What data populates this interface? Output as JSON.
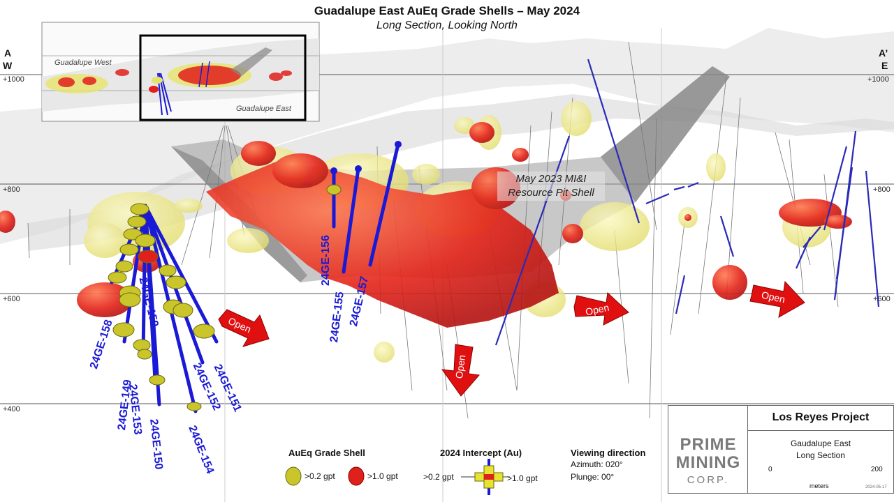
{
  "title": "Guadalupe East AuEq Grade Shells – May 2024",
  "subtitle": "Long Section, Looking North",
  "corners": {
    "left_top": "A",
    "left_bottom": "W",
    "right_top": "A’",
    "right_bottom": "E"
  },
  "elevations": [
    "+1000",
    "+800",
    "+600",
    "+400"
  ],
  "inset": {
    "west_label": "Guadalupe West",
    "east_label": "Guadalupe East"
  },
  "resource_label": [
    "May 2023 MI&I",
    "Resource Pit Shell"
  ],
  "open_label": "Open",
  "drillholes": [
    "24GE-158",
    "24GE-149",
    "24GE-153",
    "24GE-150",
    "24GE-159",
    "24GE-154",
    "24GE-152",
    "24GE-151",
    "24GE-156",
    "24GE-155",
    "24GE-157"
  ],
  "legend": {
    "shell_title": "AuEq Grade Shell",
    "shell_low": ">0.2 gpt",
    "shell_high": ">1.0 gpt",
    "intercept_title": "2024 Intercept (Au)",
    "intercept_low": ">0.2 gpt",
    "intercept_high": ">1.0 gpt",
    "view_title": "Viewing  direction",
    "azimuth": "Azimuth: 020°",
    "plunge": "Plunge: 00°"
  },
  "colors": {
    "low_grade": "#e6e36a",
    "high_grade": "#e0201a",
    "drillhole": "#1a1ad6",
    "arrow": "#e01010"
  },
  "logo": {
    "line1": "PRIME",
    "line2": "MINING",
    "line3": "CORP."
  },
  "project": {
    "name": "Los Reyes Project",
    "sub1": "Gaudalupe East",
    "sub2": "Long Section"
  },
  "scale": {
    "start": "0",
    "end": "200",
    "unit": "meters",
    "date": "2024-05-17"
  }
}
